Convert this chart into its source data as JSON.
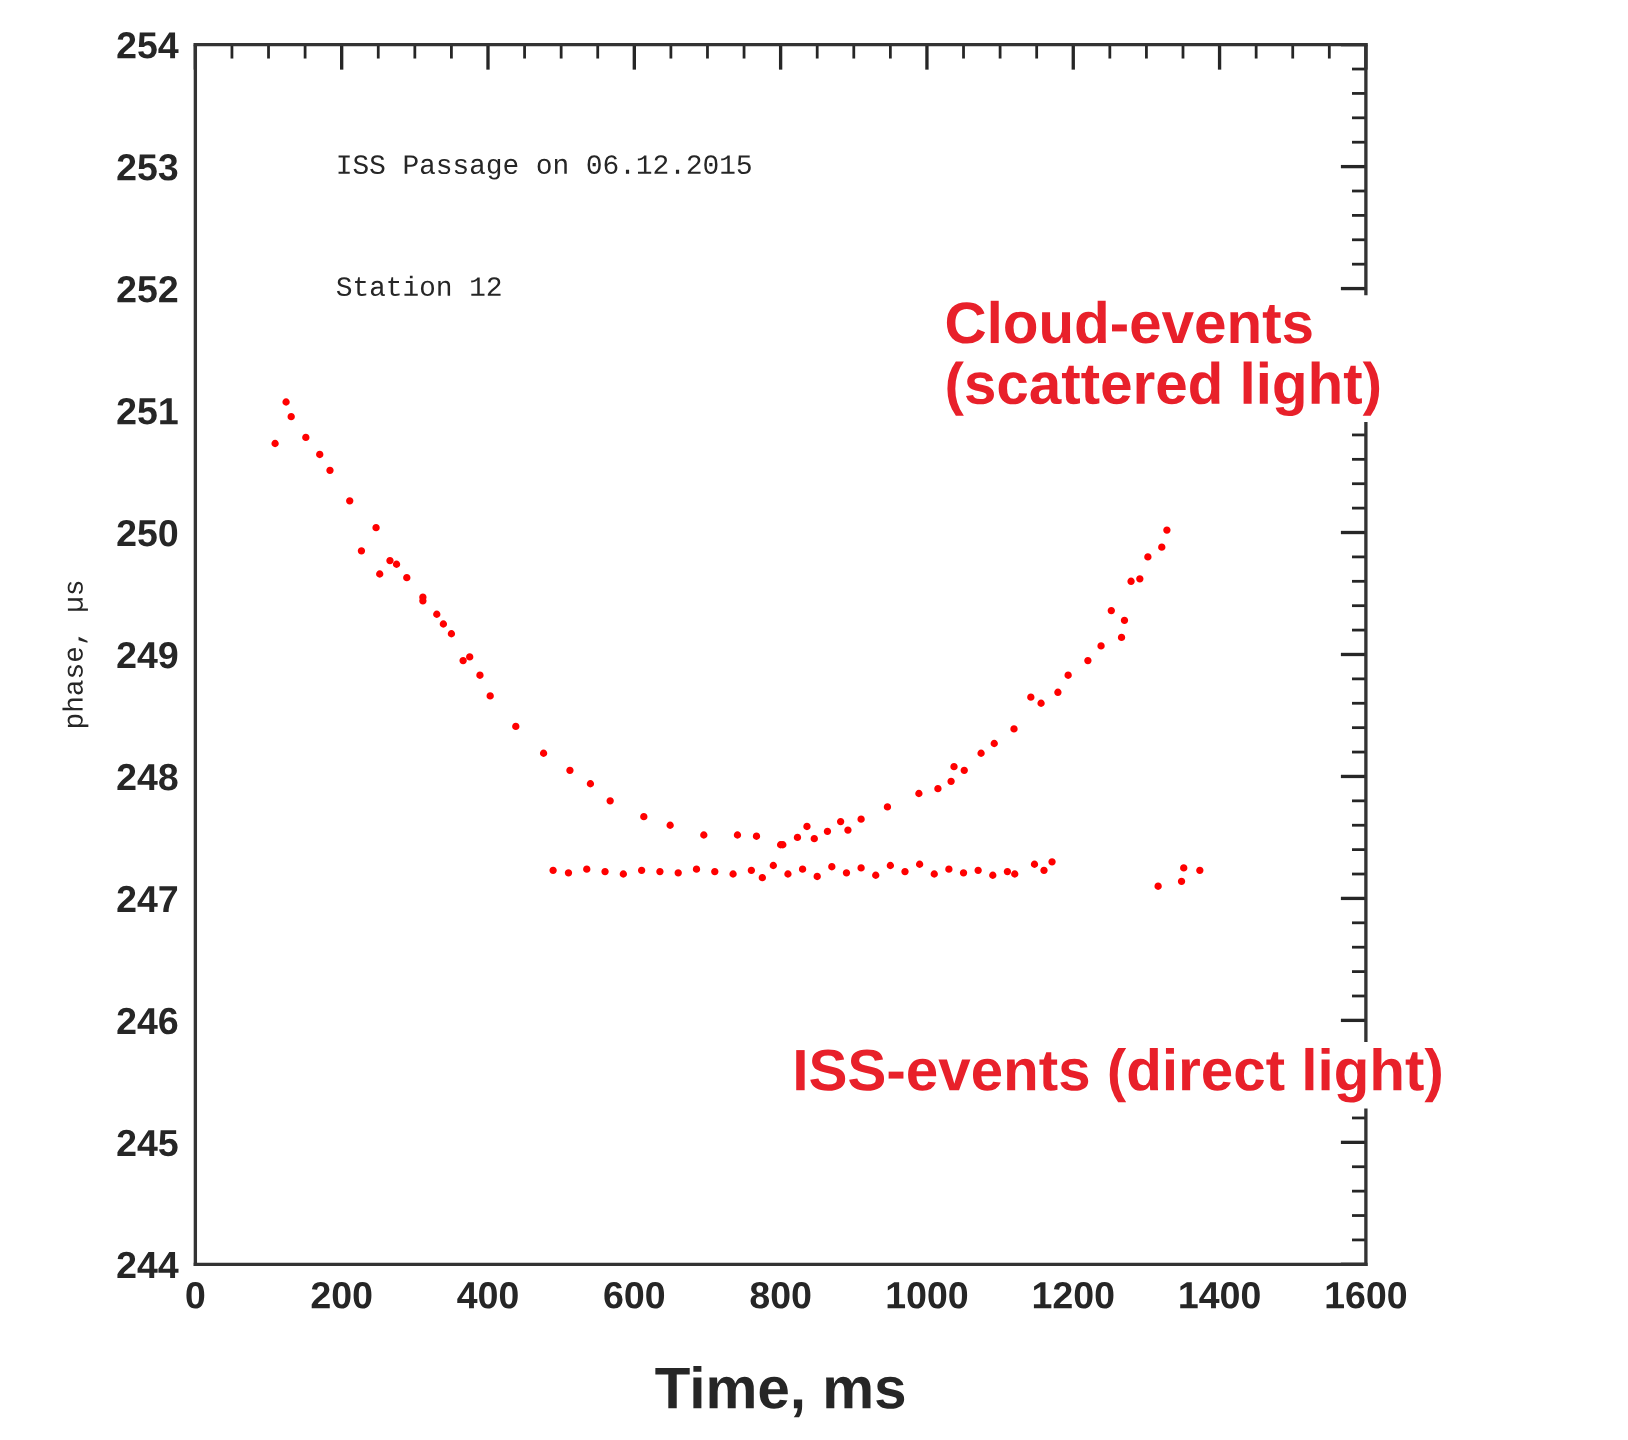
{
  "chart_data": {
    "type": "scatter",
    "xlabel": "Time, ms",
    "ylabel": "phase, µs",
    "xlim": [
      0,
      1600
    ],
    "ylim": [
      244,
      254
    ],
    "xticks": [
      0,
      200,
      400,
      600,
      800,
      1000,
      1200,
      1400,
      1600
    ],
    "yticks": [
      244,
      245,
      246,
      247,
      248,
      249,
      250,
      251,
      252,
      253,
      254
    ],
    "marker": "circle",
    "grid": false,
    "legend": false,
    "annotations": [
      "ISS Passage on 06.12.2015",
      "Station 12"
    ],
    "series": [
      {
        "name": "Cloud-events\n(scattered light)",
        "color": "#ff0000",
        "x": [
          109,
          124,
          131,
          151,
          170,
          184,
          211,
          227,
          247,
          252,
          266,
          275,
          289,
          311,
          311,
          330,
          339,
          350,
          366,
          375,
          389,
          403,
          438,
          476,
          512,
          540,
          567,
          613,
          649,
          695,
          741,
          767,
          800,
          803,
          823,
          836,
          846,
          864,
          882,
          892,
          910,
          946,
          989,
          1015,
          1033,
          1037,
          1051,
          1074,
          1092,
          1119,
          1142,
          1156,
          1179,
          1193,
          1220,
          1238,
          1252,
          1266,
          1270,
          1279,
          1291,
          1302,
          1321,
          1328
        ],
        "values": [
          250.73,
          251.07,
          250.95,
          250.78,
          250.64,
          250.51,
          250.26,
          249.85,
          250.04,
          249.66,
          249.77,
          249.74,
          249.63,
          249.44,
          249.47,
          249.33,
          249.25,
          249.17,
          248.95,
          248.98,
          248.83,
          248.66,
          248.41,
          248.19,
          248.05,
          247.94,
          247.8,
          247.67,
          247.6,
          247.52,
          247.52,
          247.51,
          247.44,
          247.44,
          247.5,
          247.59,
          247.49,
          247.55,
          247.63,
          247.56,
          247.65,
          247.75,
          247.86,
          247.9,
          247.96,
          248.08,
          248.05,
          248.19,
          248.27,
          248.39,
          248.65,
          248.6,
          248.69,
          248.83,
          248.95,
          249.07,
          249.36,
          249.14,
          249.28,
          249.6,
          249.62,
          249.8,
          249.88,
          250.02
        ]
      },
      {
        "name": "ISS-events (direct light)",
        "color": "#ff0000",
        "x": [
          489,
          510,
          535,
          560,
          585,
          610,
          635,
          660,
          685,
          710,
          735,
          760,
          775,
          790,
          810,
          830,
          850,
          870,
          890,
          910,
          930,
          950,
          970,
          990,
          1010,
          1030,
          1050,
          1070,
          1090,
          1110,
          1120,
          1147,
          1160,
          1171,
          1316,
          1348,
          1351,
          1373
        ],
        "values": [
          247.23,
          247.21,
          247.24,
          247.22,
          247.2,
          247.23,
          247.22,
          247.21,
          247.24,
          247.22,
          247.2,
          247.23,
          247.17,
          247.27,
          247.2,
          247.24,
          247.18,
          247.26,
          247.21,
          247.25,
          247.19,
          247.27,
          247.22,
          247.28,
          247.2,
          247.24,
          247.21,
          247.23,
          247.19,
          247.22,
          247.2,
          247.28,
          247.23,
          247.3,
          247.1,
          247.14,
          247.25,
          247.23
        ]
      }
    ]
  }
}
